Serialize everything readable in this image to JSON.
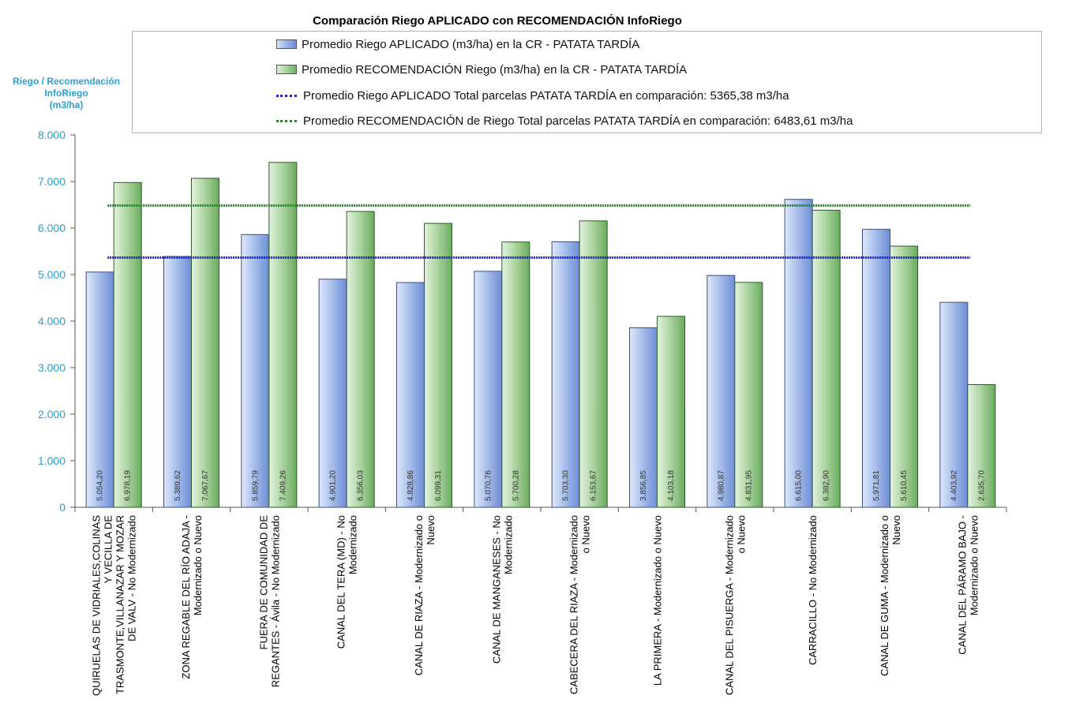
{
  "chart_data": {
    "type": "bar",
    "title": "Comparación Riego APLICADO  con RECOMENDACIÓN  InfoRiego",
    "ylabel_lines": [
      "Riego / Recomendación",
      "InfoRiego",
      "(m3/ha)"
    ],
    "ylim": [
      0,
      8000
    ],
    "yticks": [
      0,
      1000,
      2000,
      3000,
      4000,
      5000,
      6000,
      7000,
      8000
    ],
    "ytick_labels": [
      "0",
      "1.000",
      "2.000",
      "3.000",
      "4.000",
      "5.000",
      "6.000",
      "7.000",
      "8.000"
    ],
    "grid": false,
    "legend_position": "top",
    "categories": [
      "QUIRUELAS DE VIDRIALES,COLINAS Y VECILLA DE TRASMONTE,VILLANAZAR Y MOZAR DE VALV - No Modernizado",
      "ZONA REGABLE DEL RÍO ADAJA - Modernizado o Nuevo",
      "FUERA DE COMUNIDAD DE REGANTES - Ávila - No Modernizado",
      "CANAL DEL TERA (MD) - No Modernizado",
      "CANAL DE RIAZA - Modernizado o Nuevo",
      "CANAL DE MANGANESES - No Modernizado",
      "CABECERA DEL RIAZA - Modernizado o Nuevo",
      "LA PRIMERA - Modernizado o Nuevo",
      "CANAL DEL PISUERGA - Modernizado o Nuevo",
      "CARRACILLO - No Modernizado",
      "CANAL DE GUMA - Modernizado o Nuevo",
      "CANAL DEL PÁRAMO BAJO - Modernizado o Nuevo"
    ],
    "category_lines": [
      [
        "QUIRUELAS DE VIDRIALES,COLINAS",
        "Y VECILLA DE",
        "TRASMONTE,VILLANAZAR Y MOZAR",
        "DE VALV - No Modernizado"
      ],
      [
        "ZONA REGABLE DEL RÍO ADAJA -",
        "Modernizado o Nuevo"
      ],
      [
        "FUERA DE COMUNIDAD DE",
        "REGANTES - Ávila - No Modernizado"
      ],
      [
        "CANAL DEL TERA (MD) - No",
        "Modernizado"
      ],
      [
        "CANAL DE RIAZA - Modernizado o",
        "Nuevo"
      ],
      [
        "CANAL DE MANGANESES - No",
        "Modernizado"
      ],
      [
        "CABECERA DEL RIAZA - Modernizado",
        "o Nuevo"
      ],
      [
        "LA PRIMERA - Modernizado o Nuevo"
      ],
      [
        "CANAL DEL PISUERGA - Modernizado",
        "o Nuevo"
      ],
      [
        "CARRACILLO - No Modernizado"
      ],
      [
        "CANAL DE GUMA - Modernizado o",
        "Nuevo"
      ],
      [
        "CANAL DEL PÁRAMO BAJO -",
        "Modernizado o Nuevo"
      ]
    ],
    "series": [
      {
        "name": "Promedio Riego APLICADO (m3/ha) en la CR - PATATA TARDÍA",
        "color": "#9db5e8",
        "values": [
          5054.2,
          5389.62,
          5859.79,
          4901.2,
          4828.86,
          5070.76,
          5703.3,
          3856.85,
          4980.87,
          6615.0,
          5971.81,
          4403.92
        ],
        "labels": [
          "5.054,20",
          "5.389,62",
          "5.859,79",
          "4.901,20",
          "4.828,86",
          "5.070,76",
          "5.703,30",
          "3.856,85",
          "4.980,87",
          "6.615,00",
          "5.971,81",
          "4.403,92"
        ]
      },
      {
        "name": "Promedio RECOMENDACIÓN Riego (m3/ha) en la CR - PATATA TARDÍA",
        "color": "#a9d49f",
        "values": [
          6978.19,
          7067.67,
          7409.26,
          6356.03,
          6099.31,
          5700.28,
          6153.67,
          4103.18,
          4831.95,
          6382.9,
          5610.45,
          2635.7
        ],
        "labels": [
          "6.978,19",
          "7.067,67",
          "7.409,26",
          "6.356,03",
          "6.099,31",
          "5.700,28",
          "6.153,67",
          "4.103,18",
          "4.831,95",
          "6.382,90",
          "5.610,45",
          "2.635,70"
        ]
      }
    ],
    "reference_lines": [
      {
        "name": "Promedio Riego APLICADO Total parcelas PATATA TARDÍA en comparación: 5365,38 m3/ha",
        "value": 5365.38,
        "color": "#1f1fd6"
      },
      {
        "name": "Promedio RECOMENDACIÓN de Riego Total parcelas PATATA TARDÍA en comparación: 6483,61 m3/ha",
        "value": 6483.61,
        "color": "#1e8c1e"
      }
    ]
  }
}
